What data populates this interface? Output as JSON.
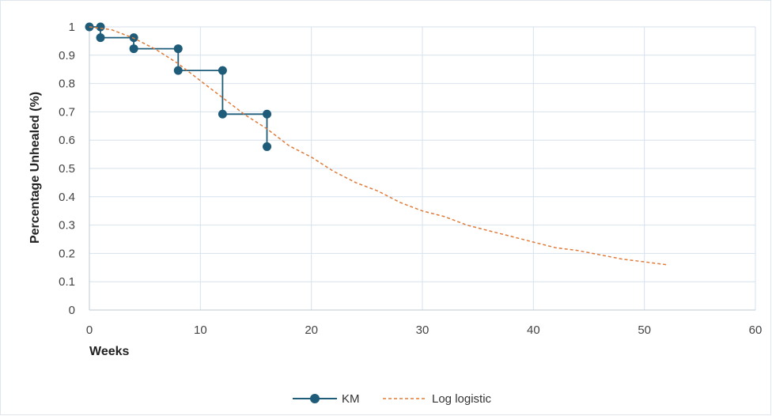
{
  "chart_data": {
    "type": "line",
    "title": "",
    "xlabel": "Weeks",
    "ylabel": "Percentage Unhealed (%)",
    "xlim": [
      0,
      60
    ],
    "ylim": [
      0,
      1
    ],
    "x_ticks": [
      "0",
      "10",
      "20",
      "30",
      "40",
      "50",
      "60"
    ],
    "y_ticks": [
      "0",
      "0.1",
      "0.2",
      "0.3",
      "0.4",
      "0.5",
      "0.6",
      "0.7",
      "0.8",
      "0.9",
      "1"
    ],
    "grid": true,
    "legend_position": "bottom",
    "series": [
      {
        "name": "KM",
        "style": "step",
        "color": "#1f5c7a",
        "x": [
          0,
          1,
          1,
          4,
          4,
          8,
          8,
          12,
          12,
          16,
          16
        ],
        "y": [
          1,
          1,
          0.962,
          0.962,
          0.923,
          0.923,
          0.846,
          0.846,
          0.692,
          0.692,
          0.577
        ],
        "markers": [
          [
            0,
            1
          ],
          [
            1,
            1
          ],
          [
            1,
            0.962
          ],
          [
            4,
            0.962
          ],
          [
            4,
            0.923
          ],
          [
            8,
            0.923
          ],
          [
            8,
            0.846
          ],
          [
            12,
            0.846
          ],
          [
            12,
            0.692
          ],
          [
            16,
            0.692
          ],
          [
            16,
            0.577
          ]
        ]
      },
      {
        "name": "Log logistic",
        "style": "dashed",
        "color": "#e07b39",
        "x": [
          0,
          2,
          4,
          6,
          8,
          10,
          12,
          14,
          16,
          18,
          20,
          22,
          24,
          26,
          28,
          30,
          32,
          34,
          36,
          38,
          40,
          42,
          44,
          46,
          48,
          50,
          52
        ],
        "y": [
          1.0,
          0.99,
          0.96,
          0.92,
          0.87,
          0.81,
          0.75,
          0.69,
          0.64,
          0.58,
          0.54,
          0.49,
          0.45,
          0.42,
          0.38,
          0.35,
          0.33,
          0.3,
          0.28,
          0.26,
          0.24,
          0.22,
          0.21,
          0.195,
          0.18,
          0.17,
          0.16
        ]
      }
    ]
  }
}
